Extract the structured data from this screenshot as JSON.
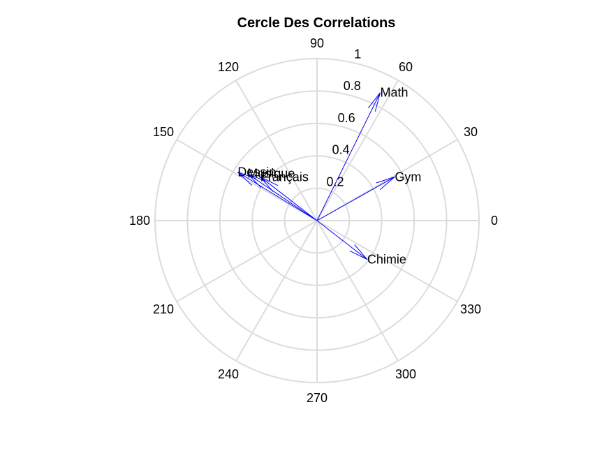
{
  "chart_data": {
    "type": "polar",
    "title": "Cercle Des Correlations",
    "theta_ticks": [
      "0",
      "30",
      "60",
      "90",
      "120",
      "150",
      "180",
      "210",
      "240",
      "270",
      "300",
      "330"
    ],
    "theta_tick_degrees": [
      0,
      30,
      60,
      90,
      120,
      150,
      180,
      210,
      240,
      270,
      300,
      330
    ],
    "r_ticks": [
      "0.2",
      "0.4",
      "0.6",
      "0.8",
      "1"
    ],
    "r_tick_values": [
      0.2,
      0.4,
      0.6,
      0.8,
      1.0
    ],
    "rlim": [
      0,
      1
    ],
    "grid": true,
    "vector_color": "#0000ff",
    "grid_color": "#dcdcdc",
    "vectors": [
      {
        "label": "Math",
        "x": 0.39,
        "y": 0.79
      },
      {
        "label": "Gym",
        "x": 0.48,
        "y": 0.27
      },
      {
        "label": "Chimie",
        "x": 0.31,
        "y": -0.24
      },
      {
        "label": "Dessin",
        "x": -0.49,
        "y": 0.3
      },
      {
        "label": "Musique",
        "x": -0.43,
        "y": 0.29
      },
      {
        "label": "Français",
        "x": -0.35,
        "y": 0.27
      }
    ]
  }
}
